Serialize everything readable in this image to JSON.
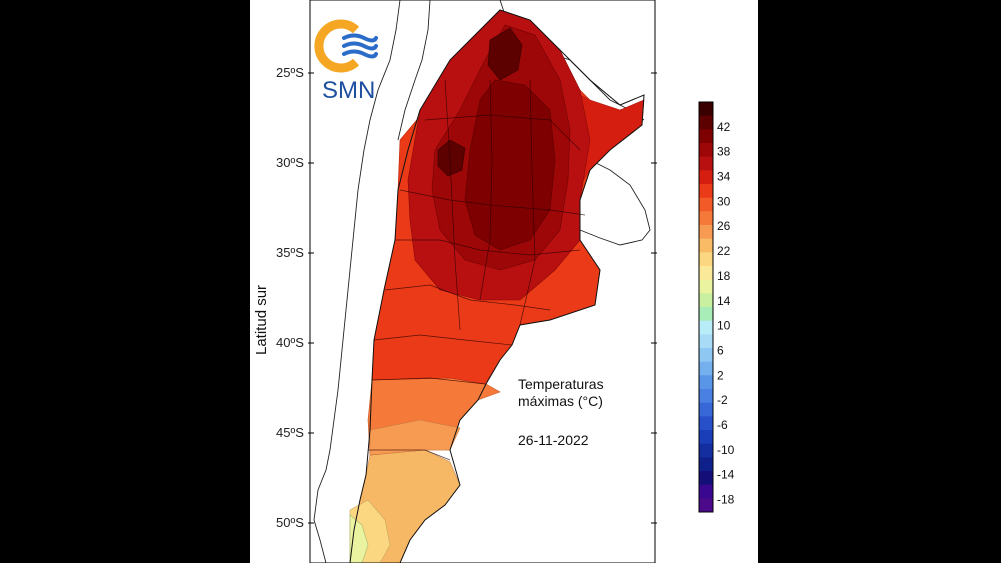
{
  "logo": {
    "text": "SMN"
  },
  "axis": {
    "ylabel": "Latitud sur",
    "ticks": [
      "25ºS",
      "30ºS",
      "35ºS",
      "40ºS",
      "45ºS",
      "50ºS"
    ]
  },
  "caption": {
    "line1": "Temperaturas",
    "line2": "máximas (°C)",
    "date": "26-11-2022"
  },
  "colorbar": {
    "labels": [
      "42",
      "38",
      "34",
      "30",
      "26",
      "22",
      "18",
      "14",
      "10",
      "6",
      "2",
      "-2",
      "-6",
      "-10",
      "-14",
      "-18"
    ],
    "colors": [
      "#3a0000",
      "#5c0000",
      "#7e0000",
      "#9e0707",
      "#b81010",
      "#d61e10",
      "#ea3a18",
      "#f25a28",
      "#f57a3a",
      "#f79a52",
      "#f9bb66",
      "#fad780",
      "#fbe99a",
      "#eaf3a0",
      "#c8f0a0",
      "#a8ecb8",
      "#b8ecf6",
      "#a8dcf6",
      "#8ec8f2",
      "#74b0ee",
      "#5a96e8",
      "#4a80e2",
      "#3868d8",
      "#2850c8",
      "#1a3eb8",
      "#142ea0",
      "#10208a",
      "#140e78",
      "#3a0890",
      "#4a0a8a"
    ]
  }
}
